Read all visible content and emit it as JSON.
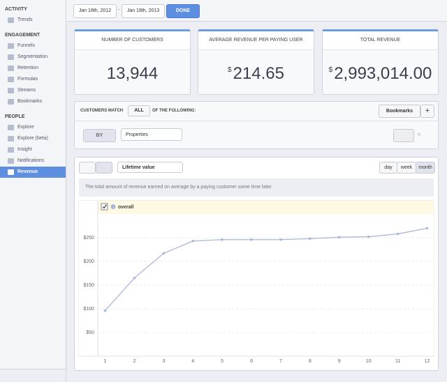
{
  "sidebar": {
    "sections": [
      {
        "title": "ACTIVITY",
        "items": [
          "Trends"
        ]
      },
      {
        "title": "ENGAGEMENT",
        "items": [
          "Funnels",
          "Segmentation",
          "Retention",
          "Formulas",
          "Streams",
          "Bookmarks"
        ]
      },
      {
        "title": "PEOPLE",
        "items": [
          "Explore",
          "Explore (beta)",
          "Insight",
          "Notifications",
          "Revenue"
        ]
      }
    ]
  },
  "date_range": {
    "from": "Jan 18th, 2012",
    "separator": "-",
    "to": "Jan 18th, 2013",
    "button": "DONE"
  },
  "stats": [
    {
      "label": "NUMBER OF CUSTOMERS",
      "value": "13,944"
    },
    {
      "label": "AVERAGE REVENUE PER PAYING USER",
      "currency": "$",
      "value": "214.65"
    },
    {
      "label": "TOTAL REVENUE",
      "currency": "$",
      "value": "2,993,014.00"
    }
  ],
  "filter": {
    "match_label": "CUSTOMERS MATCH",
    "match_value": "ALL",
    "match_suffix": "OF THE FOLLOWING:",
    "bookmarks": "Bookmarks",
    "add": "+",
    "by": "BY",
    "property": "Properties",
    "remove": "×"
  },
  "panel": {
    "metric": "Lifetime value",
    "periods": [
      "day",
      "week",
      "month"
    ],
    "description": "The total amount of revenue earned on average by a paying customer some time later."
  },
  "chart_data": {
    "type": "line",
    "x": [
      1,
      2,
      3,
      4,
      5,
      6,
      7,
      8,
      9,
      10,
      11,
      12
    ],
    "series": [
      {
        "name": "overall",
        "color": "#a9b8d8",
        "values": [
          96,
          165,
          217,
          243,
          246,
          246,
          246,
          248,
          251,
          252,
          258,
          270
        ]
      }
    ],
    "xlim": [
      0.75,
      12.25
    ],
    "ylim": [
      0,
      300
    ],
    "xticks": [
      1,
      2,
      3,
      4,
      5,
      6,
      7,
      8,
      9,
      10,
      11,
      12
    ],
    "yticks": [
      {
        "value": 50,
        "label": "$50"
      },
      {
        "value": 100,
        "label": "$100"
      },
      {
        "value": 150,
        "label": "$150"
      },
      {
        "value": 200,
        "label": "$200"
      },
      {
        "value": 250,
        "label": "$250"
      }
    ],
    "grid": true
  }
}
